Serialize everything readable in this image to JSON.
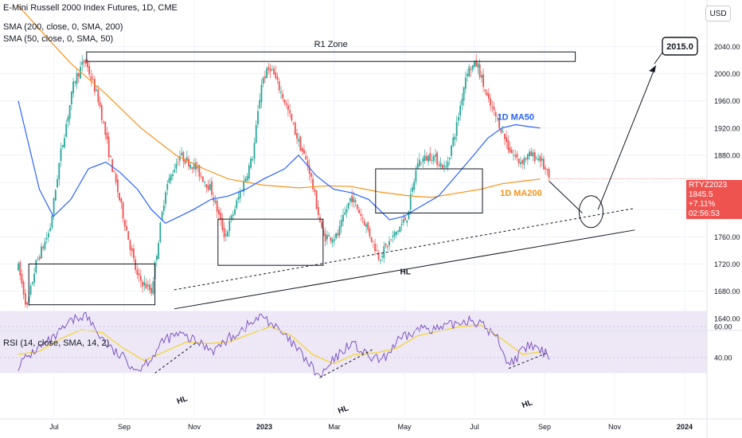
{
  "header": {
    "title": "E-Mini Russell 2000 Index Futures, 1D, CME",
    "sma200_label": "SMA (200, close, 0, SMA, 200)",
    "sma50_label": "SMA (50, close, 0, SMA, 50)"
  },
  "currency_button": "USD",
  "rsi_label": "RSI (14, close, SMA, 14, 2)",
  "price_tag": {
    "symbol": "RTYZ2023",
    "price": "1845.5",
    "change": "+7.11%",
    "countdown": "02:56:53"
  },
  "colors": {
    "up": "#26a69a",
    "down": "#ef5350",
    "sma50": "#2962ff",
    "sma200": "#f7931a",
    "rsi": "#7e57c2",
    "rsi_ma": "#f5d327",
    "rsi_band": "#ede7f6",
    "tag_bg": "#ef5350"
  },
  "chart_data": {
    "type": "candlestick",
    "price_axis": {
      "ylim": [
        1628,
        2085
      ],
      "ticks": [
        1640,
        1680,
        1720,
        1760,
        1800,
        1840,
        1880,
        1920,
        1960,
        2000,
        2040
      ],
      "tick_labels": [
        "1640.00",
        "1680.00",
        "1720.00",
        "1760.00",
        "1800.00",
        "1840.00",
        "1880.00",
        "1920.00",
        "1960.00",
        "2000.00",
        "2040.00"
      ]
    },
    "rsi_axis": {
      "ticks": [
        40,
        60
      ],
      "tick_labels": [
        "40.00",
        "60.00"
      ],
      "band": [
        30,
        70
      ]
    },
    "time_axis": {
      "labels": [
        "Jul",
        "Sep",
        "Nov",
        "2023",
        "Mar",
        "May",
        "Jul",
        "Sep",
        "Nov",
        "2024"
      ],
      "label_months": [
        0,
        2,
        4,
        6,
        8,
        10,
        12,
        14,
        16,
        18
      ]
    },
    "price_path": [
      [
        0,
        1715
      ],
      [
        0.25,
        1655
      ],
      [
        0.5,
        1720
      ],
      [
        0.9,
        1770
      ],
      [
        1.2,
        1880
      ],
      [
        1.6,
        1990
      ],
      [
        1.9,
        2020
      ],
      [
        2.3,
        1960
      ],
      [
        2.6,
        1880
      ],
      [
        3.0,
        1790
      ],
      [
        3.4,
        1700
      ],
      [
        3.8,
        1680
      ],
      [
        4.2,
        1830
      ],
      [
        4.6,
        1880
      ],
      [
        5.0,
        1865
      ],
      [
        5.5,
        1830
      ],
      [
        5.9,
        1760
      ],
      [
        6.3,
        1820
      ],
      [
        6.7,
        1880
      ],
      [
        6.95,
        1990
      ],
      [
        7.2,
        2010
      ],
      [
        7.6,
        1960
      ],
      [
        8.0,
        1900
      ],
      [
        8.3,
        1860
      ],
      [
        8.7,
        1760
      ],
      [
        9.1,
        1760
      ],
      [
        9.5,
        1820
      ],
      [
        9.9,
        1780
      ],
      [
        10.3,
        1730
      ],
      [
        10.7,
        1760
      ],
      [
        11.1,
        1790
      ],
      [
        11.4,
        1870
      ],
      [
        11.8,
        1880
      ],
      [
        12.2,
        1860
      ],
      [
        12.5,
        1920
      ],
      [
        12.8,
        2005
      ],
      [
        13.1,
        2015
      ],
      [
        13.4,
        1960
      ],
      [
        13.7,
        1930
      ],
      [
        14.0,
        1890
      ],
      [
        14.3,
        1870
      ],
      [
        14.6,
        1880
      ],
      [
        14.9,
        1875
      ],
      [
        15.15,
        1845.5
      ]
    ],
    "sma50": [
      [
        0,
        1960
      ],
      [
        0.6,
        1830
      ],
      [
        1.0,
        1790
      ],
      [
        1.5,
        1815
      ],
      [
        2.0,
        1860
      ],
      [
        2.5,
        1870
      ],
      [
        2.9,
        1855
      ],
      [
        3.4,
        1830
      ],
      [
        3.8,
        1800
      ],
      [
        4.2,
        1780
      ],
      [
        4.6,
        1790
      ],
      [
        5.0,
        1800
      ],
      [
        5.5,
        1815
      ],
      [
        6.0,
        1820
      ],
      [
        6.5,
        1830
      ],
      [
        7.0,
        1845
      ],
      [
        7.6,
        1860
      ],
      [
        8.0,
        1880
      ],
      [
        8.5,
        1850
      ],
      [
        9.0,
        1830
      ],
      [
        9.5,
        1825
      ],
      [
        10.0,
        1815
      ],
      [
        10.6,
        1785
      ],
      [
        11.0,
        1790
      ],
      [
        11.5,
        1805
      ],
      [
        12.0,
        1820
      ],
      [
        12.5,
        1850
      ],
      [
        13.0,
        1880
      ],
      [
        13.4,
        1905
      ],
      [
        13.8,
        1920
      ],
      [
        14.2,
        1925
      ],
      [
        14.6,
        1922
      ],
      [
        14.9,
        1920
      ]
    ],
    "sma200": [
      [
        0,
        2100
      ],
      [
        0.7,
        2060
      ],
      [
        1.5,
        2015
      ],
      [
        2.5,
        1970
      ],
      [
        3.5,
        1920
      ],
      [
        4.5,
        1880
      ],
      [
        5.3,
        1860
      ],
      [
        6.0,
        1845
      ],
      [
        7.0,
        1836
      ],
      [
        8.0,
        1832
      ],
      [
        8.8,
        1835
      ],
      [
        9.5,
        1834
      ],
      [
        10.3,
        1826
      ],
      [
        11.2,
        1820
      ],
      [
        11.8,
        1818
      ],
      [
        12.5,
        1824
      ],
      [
        13.2,
        1830
      ],
      [
        13.8,
        1838
      ],
      [
        14.4,
        1842
      ],
      [
        14.9,
        1845
      ]
    ],
    "rsi": [
      [
        0,
        35
      ],
      [
        0.5,
        45
      ],
      [
        1.0,
        52
      ],
      [
        1.5,
        63
      ],
      [
        1.9,
        68
      ],
      [
        2.3,
        55
      ],
      [
        2.7,
        44
      ],
      [
        3.0,
        40
      ],
      [
        3.4,
        32
      ],
      [
        3.8,
        40
      ],
      [
        4.2,
        52
      ],
      [
        4.6,
        55
      ],
      [
        5.1,
        50
      ],
      [
        5.6,
        45
      ],
      [
        6.0,
        52
      ],
      [
        6.5,
        60
      ],
      [
        7.0,
        67
      ],
      [
        7.4,
        58
      ],
      [
        7.9,
        47
      ],
      [
        8.3,
        36
      ],
      [
        8.6,
        27
      ],
      [
        9.0,
        38
      ],
      [
        9.5,
        50
      ],
      [
        10.0,
        40
      ],
      [
        10.4,
        38
      ],
      [
        10.8,
        50
      ],
      [
        11.2,
        55
      ],
      [
        11.6,
        60
      ],
      [
        12.0,
        58
      ],
      [
        12.5,
        62
      ],
      [
        12.9,
        65
      ],
      [
        13.3,
        60
      ],
      [
        13.7,
        52
      ],
      [
        14.0,
        35
      ],
      [
        14.3,
        42
      ],
      [
        14.6,
        48
      ],
      [
        14.9,
        44
      ],
      [
        15.15,
        42
      ]
    ],
    "rsi_ma": [
      [
        0,
        42
      ],
      [
        0.6,
        44
      ],
      [
        1.2,
        52
      ],
      [
        1.8,
        58
      ],
      [
        2.4,
        56
      ],
      [
        3.0,
        46
      ],
      [
        3.6,
        38
      ],
      [
        4.2,
        44
      ],
      [
        4.8,
        50
      ],
      [
        5.4,
        49
      ],
      [
        6.0,
        50
      ],
      [
        6.6,
        55
      ],
      [
        7.2,
        60
      ],
      [
        7.8,
        54
      ],
      [
        8.4,
        42
      ],
      [
        9.0,
        36
      ],
      [
        9.6,
        42
      ],
      [
        10.2,
        43
      ],
      [
        10.8,
        46
      ],
      [
        11.4,
        54
      ],
      [
        12.0,
        57
      ],
      [
        12.6,
        60
      ],
      [
        13.2,
        61
      ],
      [
        13.8,
        52
      ],
      [
        14.4,
        42
      ],
      [
        15.0,
        44
      ]
    ],
    "annotations": {
      "r1_zone": {
        "label": "R1 Zone",
        "x_range": [
          1.95,
          15.9
        ],
        "y_range": [
          2018,
          2032
        ]
      },
      "target": {
        "label": "2015.0"
      },
      "ma50_label": "1D MA50",
      "ma200_label": "1D MA200",
      "hl_label": "HL",
      "rsi_hl_labels": [
        "HL",
        "HL",
        "HL"
      ],
      "boxes": [
        {
          "x_range": [
            0.3,
            3.9
          ],
          "y_range": [
            1660,
            1720
          ]
        },
        {
          "x_range": [
            5.7,
            8.7
          ],
          "y_range": [
            1718,
            1786
          ]
        },
        {
          "x_range": [
            10.2,
            13.25
          ],
          "y_range": [
            1795,
            1860
          ]
        }
      ]
    }
  }
}
